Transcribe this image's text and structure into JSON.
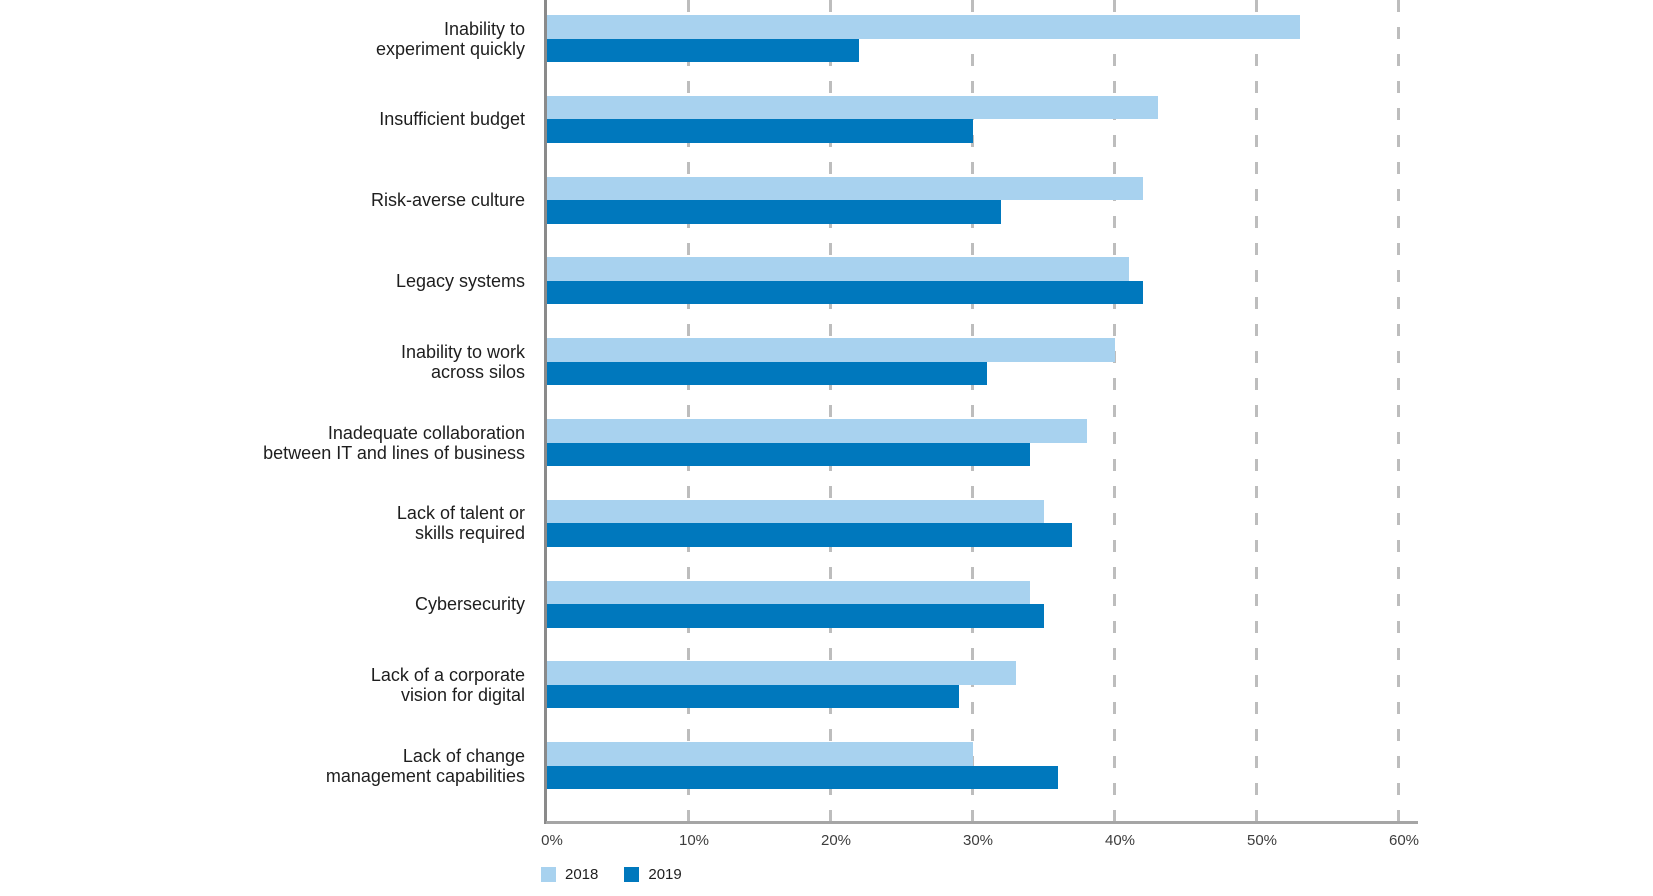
{
  "chart_data": {
    "type": "bar",
    "orientation": "horizontal",
    "title": "",
    "categories": [
      "Inability to\nexperiment quickly",
      "Insufficient budget",
      "Risk-averse culture",
      "Legacy systems",
      "Inability to work\nacross silos",
      "Inadequate collaboration\nbetween IT and lines of business",
      "Lack of talent or\nskills required",
      "Cybersecurity",
      "Lack of a corporate\nvision for digital",
      "Lack of change\nmanagement capabilities"
    ],
    "series": [
      {
        "name": "2018",
        "color": "#A8D2EF",
        "values": [
          53,
          43,
          42,
          41,
          40,
          38,
          35,
          34,
          33,
          30
        ]
      },
      {
        "name": "2019",
        "color": "#0078BD",
        "values": [
          22,
          30,
          32,
          42,
          31,
          34,
          37,
          35,
          29,
          36
        ]
      }
    ],
    "x_ticks": [
      "0%",
      "10%",
      "20%",
      "30%",
      "40%",
      "50%",
      "60%"
    ],
    "xlim": [
      0,
      60
    ],
    "xlabel": "",
    "ylabel": "",
    "grid": "vertical-dashed",
    "legend_position": "bottom-left"
  },
  "legend": {
    "items": [
      {
        "label": "2018",
        "color": "#A8D2EF"
      },
      {
        "label": "2019",
        "color": "#0078BD"
      }
    ]
  },
  "colors": {
    "background": "#FFFFFF",
    "grid": "#BDBDBD",
    "axis": "#9E9E9E",
    "tick_text": "#3D3D3D",
    "category_text": "#1E1E1E"
  }
}
